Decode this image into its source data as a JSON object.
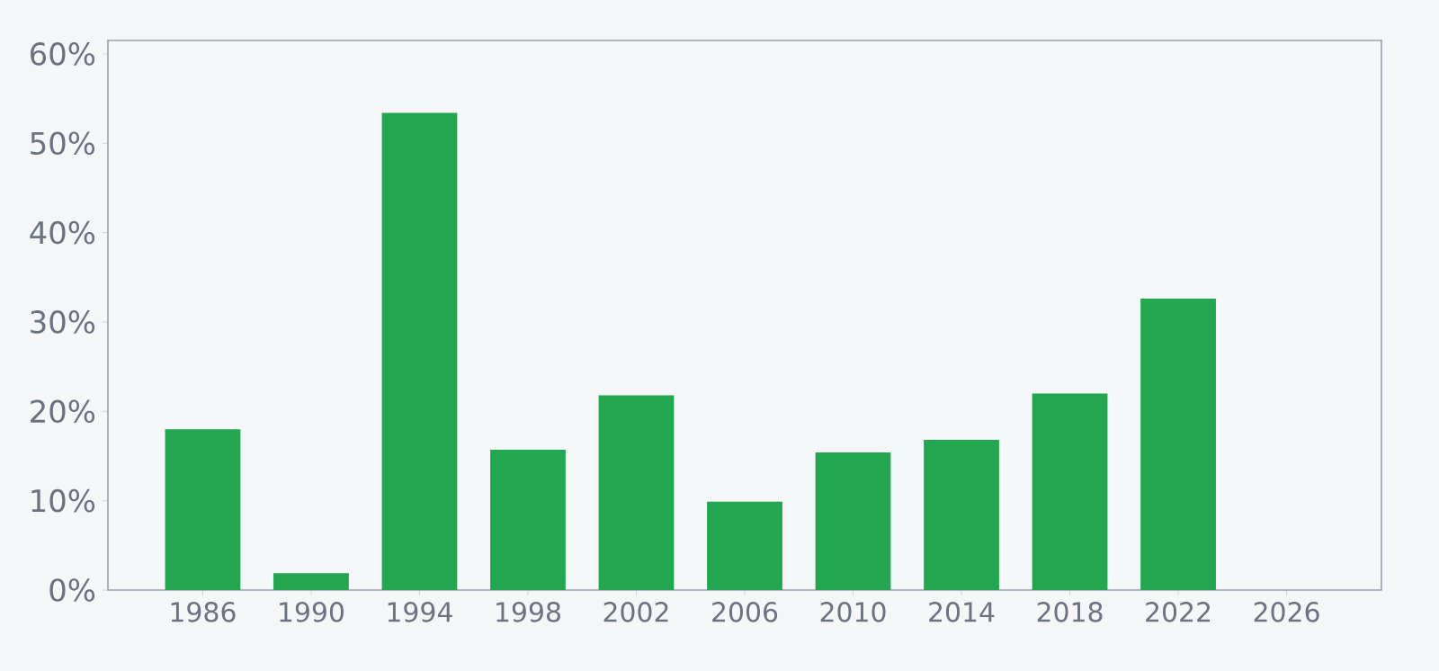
{
  "chart_data": {
    "type": "bar",
    "x": [
      1986,
      1990,
      1994,
      1998,
      2002,
      2006,
      2010,
      2014,
      2018,
      2022
    ],
    "values": [
      18.0,
      1.9,
      53.4,
      15.7,
      21.8,
      9.9,
      15.4,
      16.8,
      22.0,
      32.6
    ],
    "color": "#22a650",
    "xlim": [
      1982.5,
      2029.5
    ],
    "xticks": [
      1986,
      1990,
      1994,
      1998,
      2002,
      2006,
      2010,
      2014,
      2018,
      2022,
      2026
    ],
    "ylim": [
      0,
      61.5
    ],
    "yticks": [
      {
        "value": 0,
        "label": "0%"
      },
      {
        "value": 10,
        "label": "10%"
      },
      {
        "value": 20,
        "label": "20%"
      },
      {
        "value": 30,
        "label": "30%"
      },
      {
        "value": 40,
        "label": "40%"
      },
      {
        "value": 50,
        "label": "50%"
      },
      {
        "value": 60,
        "label": "60%"
      }
    ],
    "grid": false
  }
}
